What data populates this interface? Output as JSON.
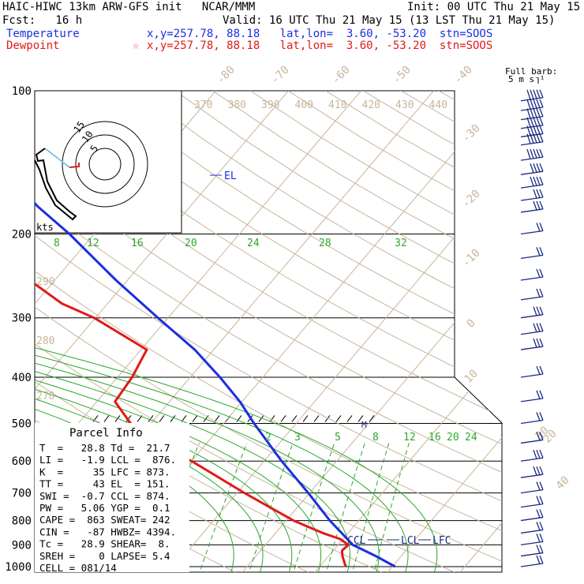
{
  "header": {
    "title_left": "HAIC-HIWC 13km ARW-GFS init   NCAR/MMM",
    "init": "Init: 00 UTC Thu 21 May 15",
    "fcst": "Fcst:   16 h",
    "valid": "Valid: 16 UTC Thu 21 May 15 (13 LST Thu 21 May 15)",
    "temp_label": "Temperature",
    "temp_loc": "x,y=257.78, 88.18   lat,lon=  3.60, -53.20  stn=SOOS",
    "dew_label": "Dewpoint",
    "dew_loc": "x,y=257.78, 88.18   lat,lon=  3.60, -53.20  stn=SOOS",
    "dew_marker": "☆"
  },
  "barb_key": {
    "title": "Full barb:",
    "value": "5 m s⁻¹"
  },
  "hodograph": {
    "unit_label": "kts",
    "rings": [
      "5",
      "10",
      "15"
    ]
  },
  "parcel_info": {
    "title": "Parcel Info",
    "rows": [
      "T  =   28.8 Td =  21.7",
      "LI =   -1.9 LCL =  876.",
      "K  =     35 LFC = 873.",
      "TT =     43 EL  = 151.",
      "SWI =  -0.7 CCL = 874.",
      "PW =   5.06 YGP =  0.1",
      "CAPE =  863 SWEAT= 242",
      "CIN =   -87 HWBZ= 4394.",
      "Tc =   28.9 SHEAR=  8.",
      "SREH =    0 LAPSE= 5.4",
      "CELL = 081/14"
    ]
  },
  "levels": {
    "el": "EL",
    "ccl": "CCL",
    "lcl": "LCL",
    "lfc": "LFC",
    "m": "M"
  },
  "colors": {
    "temperature": "#1a2fe0",
    "dewpoint": "#e01a1a",
    "isobar": "#000000",
    "isotherm": "#c8b49a",
    "dry_adiabat": "#c8b49a",
    "moist_adiabat": "#2aa82a",
    "mixing_ratio": "#2aa82a",
    "barb": "#1a2a80"
  },
  "chart_data": {
    "type": "skew-t",
    "pressure_axis": {
      "labels": [
        "100",
        "200",
        "300",
        "400",
        "500",
        "600",
        "700",
        "800",
        "900",
        "1000"
      ],
      "values": [
        100,
        200,
        300,
        400,
        500,
        600,
        700,
        800,
        900,
        1000
      ],
      "range": [
        100,
        1000
      ],
      "scale": "log"
    },
    "isotherm_labels": [
      "-80",
      "-70",
      "-60",
      "-50",
      "-40",
      "-30",
      "-20",
      "-10",
      "0",
      "10",
      "20",
      "30",
      "40"
    ],
    "isotherm_values": [
      -80,
      -70,
      -60,
      -50,
      -40,
      -30,
      -20,
      -10,
      0,
      10,
      20,
      30,
      40
    ],
    "theta_labels": [
      "370",
      "380",
      "390",
      "400",
      "410",
      "420",
      "430",
      "440"
    ],
    "theta_left_labels": [
      "290",
      "280",
      "270"
    ],
    "theta_e_labels": [
      "8",
      "12",
      "16",
      "20",
      "24",
      "28",
      "32"
    ],
    "mixing_ratio_labels": [
      "2",
      "3",
      "5",
      "8",
      "12",
      "16",
      "20",
      "24"
    ],
    "series": [
      {
        "name": "Temperature",
        "p": [
          1000,
          950,
          925,
          900,
          850,
          800,
          700,
          600,
          500,
          450,
          400,
          350,
          300,
          250,
          200,
          175,
          150,
          125,
          100
        ],
        "t": [
          30.4,
          26.5,
          24.3,
          22.0,
          19.1,
          16.0,
          9.8,
          2.4,
          -5.8,
          -10.3,
          -15.9,
          -22.6,
          -31.4,
          -41.6,
          -53.4,
          -61.0,
          -68.8,
          -76.4,
          -82.6
        ]
      },
      {
        "name": "Dewpoint",
        "p": [
          1000,
          950,
          925,
          900,
          875,
          850,
          800,
          700,
          600,
          550,
          500,
          450,
          400,
          350,
          300,
          280,
          250,
          220,
          200,
          150,
          125,
          100
        ],
        "t": [
          23.6,
          21.9,
          21.2,
          21.4,
          19.6,
          16.5,
          11.0,
          1.0,
          -10.0,
          -17.0,
          -22.8,
          -27.5,
          -28.0,
          -29.2,
          -40.2,
          -46.3,
          -53.5,
          -58.6,
          -65.0,
          -80.5,
          -86.0,
          -87.0
        ]
      }
    ],
    "wind_barbs": {
      "p": [
        105,
        110,
        115,
        120,
        125,
        130,
        140,
        150,
        160,
        170,
        180,
        200,
        225,
        250,
        275,
        300,
        325,
        350,
        400,
        450,
        500,
        550,
        600,
        650,
        700,
        750,
        800,
        850,
        900,
        950,
        1000
      ],
      "barb_count": [
        5,
        5,
        5,
        5,
        5,
        5,
        5,
        4,
        4,
        3,
        3,
        2,
        2,
        2,
        2,
        3,
        3,
        3,
        2,
        2,
        2,
        2,
        3,
        3,
        2,
        2,
        2,
        2,
        2,
        2,
        2
      ]
    }
  }
}
